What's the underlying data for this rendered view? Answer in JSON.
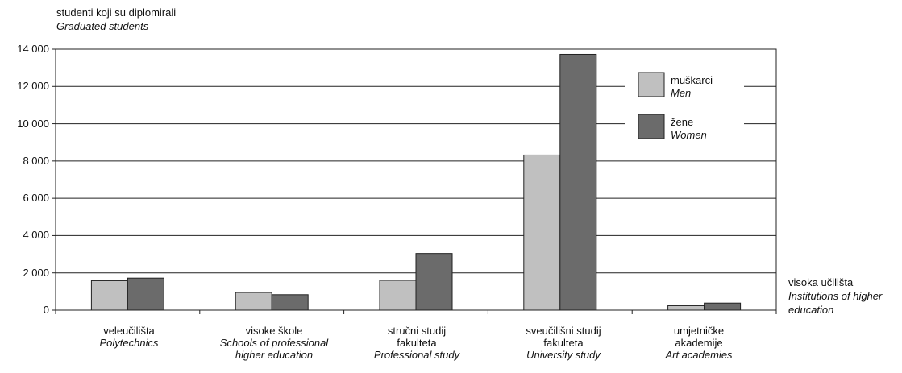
{
  "chart_data": {
    "type": "bar",
    "ylabel": "studenti koji su diplomirali",
    "ylabel_en": "Graduated students",
    "xlabel": "visoka učilišta",
    "xlabel_en": "Institutions of higher education",
    "ylim": [
      0,
      14000
    ],
    "yticks": [
      "0",
      "2 000",
      "4 000",
      "6 000",
      "8 000",
      "10 000",
      "12 000",
      "14 000"
    ],
    "grid": true,
    "legend_position": "top-right",
    "categories": [
      {
        "hr": "veleučilišta",
        "en": "Polytechnics"
      },
      {
        "hr": "visoke škole",
        "en": "Schools of professional higher education"
      },
      {
        "hr": "stručni studij fakulteta",
        "en": "Professional study"
      },
      {
        "hr": "sveučilišni studij fakulteta",
        "en": "University study"
      },
      {
        "hr": "umjetničke akademije",
        "en": "Art academies"
      }
    ],
    "series": [
      {
        "name": "muškarci",
        "name_en": "Men",
        "color": "#c0c0c0",
        "values": [
          1580,
          950,
          1600,
          8320,
          240
        ]
      },
      {
        "name": "žene",
        "name_en": "Women",
        "color": "#6b6b6b",
        "values": [
          1720,
          830,
          3040,
          13720,
          380
        ]
      }
    ]
  },
  "labels": {
    "cat0_l1": "veleučilišta",
    "cat0_en1": "Polytechnics",
    "cat1_l1": "visoke škole",
    "cat1_en1": "Schools of professional",
    "cat1_en2": "higher education",
    "cat2_l1": "stručni studij",
    "cat2_l2": "fakulteta",
    "cat2_en1": "Professional study",
    "cat3_l1": "sveučilišni studij",
    "cat3_l2": "fakulteta",
    "cat3_en1": "University study",
    "cat4_l1": "umjetničke",
    "cat4_l2": "akademije",
    "cat4_en1": "Art academies",
    "xlab_en1": "Institutions of higher",
    "xlab_en2": "education"
  }
}
